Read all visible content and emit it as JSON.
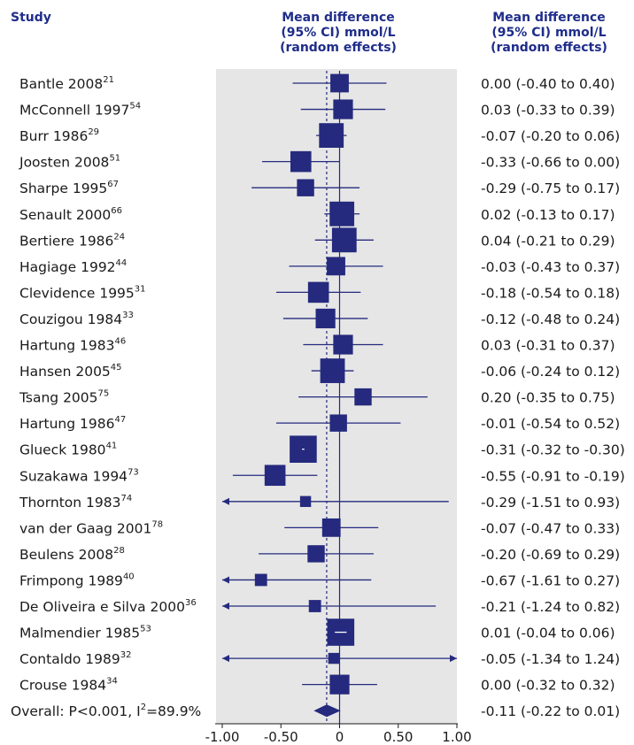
{
  "chart_data": {
    "type": "forest",
    "header": {
      "study": "Study",
      "plot_col": [
        "Mean difference",
        "(95% CI) mmol/L",
        "(random effects)"
      ],
      "value_col": [
        "Mean difference",
        "(95% CI) mmol/L",
        "(random effects)"
      ]
    },
    "x_ticks": [
      "-1.00",
      "-0.50",
      "0",
      "0.50",
      "1.00"
    ],
    "x_tick_values": [
      -1.0,
      -0.5,
      0,
      0.5,
      1.0
    ],
    "xlim": [
      -1.0,
      1.0
    ],
    "pooled_line": -0.11,
    "colors": {
      "marker": "#252a7e",
      "panel": "#e6e6e6",
      "header": "#1f2d8a"
    },
    "studies": [
      {
        "name": "Bantle 2008",
        "ref": "21",
        "mean": 0.0,
        "lo": -0.4,
        "hi": 0.4,
        "weight": 0.6,
        "ci_text": "0.00 (-0.40 to 0.40)"
      },
      {
        "name": "McConnell 1997",
        "ref": "54",
        "mean": 0.03,
        "lo": -0.33,
        "hi": 0.39,
        "weight": 0.65,
        "ci_text": "0.03 (-0.33 to 0.39)"
      },
      {
        "name": "Burr 1986",
        "ref": "29",
        "mean": -0.07,
        "lo": -0.2,
        "hi": 0.06,
        "weight": 0.85,
        "ci_text": "-0.07 (-0.20 to 0.06)"
      },
      {
        "name": "Joosten 2008",
        "ref": "51",
        "mean": -0.33,
        "lo": -0.66,
        "hi": 0.0,
        "weight": 0.7,
        "ci_text": "-0.33 (-0.66 to 0.00)"
      },
      {
        "name": "Sharpe 1995",
        "ref": "67",
        "mean": -0.29,
        "lo": -0.75,
        "hi": 0.17,
        "weight": 0.55,
        "ci_text": "-0.29 (-0.75 to 0.17)"
      },
      {
        "name": "Senault 2000",
        "ref": "66",
        "mean": 0.02,
        "lo": -0.13,
        "hi": 0.17,
        "weight": 0.85,
        "ci_text": "0.02 (-0.13 to 0.17)"
      },
      {
        "name": "Bertiere 1986",
        "ref": "24",
        "mean": 0.04,
        "lo": -0.21,
        "hi": 0.29,
        "weight": 0.85,
        "ci_text": "0.04 (-0.21 to 0.29)"
      },
      {
        "name": "Hagiage 1992",
        "ref": "44",
        "mean": -0.03,
        "lo": -0.43,
        "hi": 0.37,
        "weight": 0.6,
        "ci_text": "-0.03 (-0.43 to 0.37)"
      },
      {
        "name": "Clevidence 1995",
        "ref": "31",
        "mean": -0.18,
        "lo": -0.54,
        "hi": 0.18,
        "weight": 0.7,
        "ci_text": "-0.18 (-0.54 to 0.18)"
      },
      {
        "name": "Couzigou 1984",
        "ref": "33",
        "mean": -0.12,
        "lo": -0.48,
        "hi": 0.24,
        "weight": 0.65,
        "ci_text": "-0.12 (-0.48 to 0.24)"
      },
      {
        "name": "Hartung 1983",
        "ref": "46",
        "mean": 0.03,
        "lo": -0.31,
        "hi": 0.37,
        "weight": 0.65,
        "ci_text": "0.03 (-0.31 to 0.37)"
      },
      {
        "name": "Hansen 2005",
        "ref": "45",
        "mean": -0.06,
        "lo": -0.24,
        "hi": 0.12,
        "weight": 0.85,
        "ci_text": "-0.06 (-0.24 to 0.12)"
      },
      {
        "name": "Tsang 2005",
        "ref": "75",
        "mean": 0.2,
        "lo": -0.35,
        "hi": 0.75,
        "weight": 0.55,
        "ci_text": "0.20 (-0.35 to 0.75)"
      },
      {
        "name": "Hartung 1986",
        "ref": "47",
        "mean": -0.01,
        "lo": -0.54,
        "hi": 0.52,
        "weight": 0.55,
        "ci_text": "-0.01 (-0.54 to 0.52)"
      },
      {
        "name": "Glueck 1980",
        "ref": "41",
        "mean": -0.31,
        "lo": -0.32,
        "hi": -0.3,
        "weight": 0.95,
        "ci_text": "-0.31 (-0.32 to -0.30)"
      },
      {
        "name": "Suzakawa 1994",
        "ref": "73",
        "mean": -0.55,
        "lo": -0.91,
        "hi": -0.19,
        "weight": 0.7,
        "ci_text": "-0.55 (-0.91 to -0.19)"
      },
      {
        "name": "Thornton 1983",
        "ref": "74",
        "mean": -0.29,
        "lo": -1.51,
        "hi": 0.93,
        "weight": 0.3,
        "ci_text": "-0.29 (-1.51 to 0.93)"
      },
      {
        "name": "van der Gaag 2001",
        "ref": "78",
        "mean": -0.07,
        "lo": -0.47,
        "hi": 0.33,
        "weight": 0.6,
        "ci_text": "-0.07 (-0.47 to 0.33)"
      },
      {
        "name": "Beulens 2008",
        "ref": "28",
        "mean": -0.2,
        "lo": -0.69,
        "hi": 0.29,
        "weight": 0.55,
        "ci_text": "-0.20 (-0.69 to 0.29)"
      },
      {
        "name": "Frimpong 1989",
        "ref": "40",
        "mean": -0.67,
        "lo": -1.61,
        "hi": 0.27,
        "weight": 0.35,
        "ci_text": "-0.67 (-1.61 to 0.27)"
      },
      {
        "name": "De Oliveira e Silva 2000",
        "ref": "36",
        "mean": -0.21,
        "lo": -1.24,
        "hi": 0.82,
        "weight": 0.35,
        "ci_text": "-0.21 (-1.24 to 0.82)"
      },
      {
        "name": "Malmendier 1985",
        "ref": "53",
        "mean": 0.01,
        "lo": -0.04,
        "hi": 0.06,
        "weight": 0.95,
        "ci_text": "0.01 (-0.04 to 0.06)"
      },
      {
        "name": "Contaldo 1989",
        "ref": "32",
        "mean": -0.05,
        "lo": -1.34,
        "hi": 1.24,
        "weight": 0.3,
        "ci_text": "-0.05 (-1.34 to 1.24)"
      },
      {
        "name": "Crouse 1984",
        "ref": "34",
        "mean": 0.0,
        "lo": -0.32,
        "hi": 0.32,
        "weight": 0.65,
        "ci_text": "0.00 (-0.32 to 0.32)"
      }
    ],
    "overall": {
      "label": "Overall: P<0.001, I",
      "label_sup": "2",
      "label_tail": "=89.9%",
      "mean": -0.11,
      "lo": -0.22,
      "hi": 0.01,
      "ci_text": "-0.11 (-0.22 to 0.01)"
    }
  }
}
